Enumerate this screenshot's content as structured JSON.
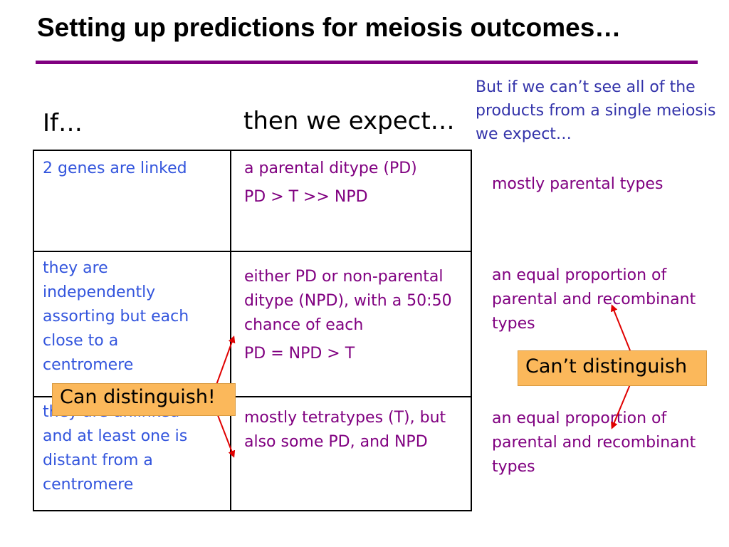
{
  "title": "Setting up predictions for meiosis outcomes…",
  "headers": {
    "if": "If…",
    "then": "then we expect…"
  },
  "side_note": "But if we can’t see all of the products from a single meiosis we expect…",
  "rows": [
    {
      "condition": "2 genes are linked",
      "expect": [
        "a parental ditype (PD)",
        "PD > T >> NPD"
      ],
      "single": "mostly parental types"
    },
    {
      "condition": "they are independently assorting but each close to a centromere",
      "expect": [
        "either PD or non-parental ditype (NPD), with a 50:50 chance of each",
        "PD = NPD > T"
      ],
      "single": "an equal proportion of parental and recombinant types"
    },
    {
      "condition": "they are unlinked and at least one is distant from a centromere",
      "expect": [
        "mostly tetratypes (T), but also some PD, and NPD"
      ],
      "single": "an equal proportion of parental and recombinant types"
    }
  ],
  "callouts": {
    "left": "Can distinguish!",
    "right": "Can’t distinguish"
  },
  "colors": {
    "rule": "#800080",
    "condition_text": "#3355dd",
    "expect_text": "#800080",
    "callout_bg": "#fbb85b",
    "arrow": "#e00000"
  }
}
